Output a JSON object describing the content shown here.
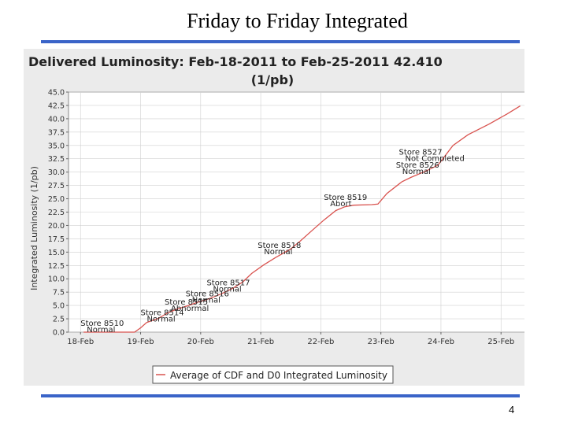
{
  "slide": {
    "title": "Friday to Friday Integrated",
    "page_number": "4"
  },
  "colors": {
    "rule": "#3a64c8",
    "series": "#d9534f",
    "panel": "#ebebeb"
  },
  "chart_data": {
    "type": "line",
    "title_line1": "Delivered Luminosity:  Feb-18-2011 to Feb-25-2011 42.410",
    "title_line2": "(1/pb)",
    "ylabel": "Integrated Luminosity (1/pb)",
    "xlabel": "",
    "ylim": [
      0,
      45
    ],
    "xlim": [
      -0.2,
      7.6
    ],
    "yticks": [
      "0.0",
      "2.5",
      "5.0",
      "7.5",
      "10.0",
      "12.5",
      "15.0",
      "17.5",
      "20.0",
      "22.5",
      "25.0",
      "27.5",
      "30.0",
      "32.5",
      "35.0",
      "37.5",
      "40.0",
      "42.5",
      "45.0"
    ],
    "xticks": [
      "18-Feb",
      "19-Feb",
      "20-Feb",
      "21-Feb",
      "22-Feb",
      "23-Feb",
      "24-Feb",
      "25-Feb"
    ],
    "grid": true,
    "legend": "Average of CDF and D0 Integrated Luminosity",
    "series": [
      {
        "name": "Average of CDF and D0 Integrated Luminosity",
        "x": [
          0.05,
          0.55,
          0.9,
          1.0,
          1.1,
          1.3,
          1.45,
          1.6,
          1.8,
          1.95,
          2.15,
          2.35,
          2.55,
          2.7,
          2.85,
          3.05,
          3.25,
          3.5,
          3.65,
          3.85,
          4.05,
          4.25,
          4.4,
          4.55,
          4.85,
          4.95,
          5.1,
          5.35,
          5.5,
          5.75,
          5.95,
          6.2,
          6.45,
          6.8,
          7.1,
          7.32
        ],
        "y": [
          0,
          0,
          0,
          0.8,
          1.8,
          2.6,
          3.6,
          4.3,
          5.0,
          5.6,
          6.3,
          7.2,
          8.3,
          9.4,
          11.0,
          12.6,
          14.0,
          15.6,
          17.0,
          19.0,
          21.0,
          22.8,
          23.5,
          23.8,
          23.9,
          24.0,
          26.0,
          28.2,
          29.0,
          30.2,
          31.3,
          35.0,
          37.0,
          39.0,
          40.9,
          42.41
        ]
      }
    ],
    "annotations": [
      {
        "x": 0.0,
        "y": 1.2,
        "label": "Store 8510",
        "status": "Normal"
      },
      {
        "x": 1.0,
        "y": 3.2,
        "label": "Store 8514",
        "status": "Normal"
      },
      {
        "x": 1.4,
        "y": 5.2,
        "label": "Store 8515",
        "status": "Abnormal"
      },
      {
        "x": 1.75,
        "y": 6.7,
        "label": "Store 8516",
        "status": "Normal"
      },
      {
        "x": 2.1,
        "y": 8.8,
        "label": "Store 8517",
        "status": "Normal"
      },
      {
        "x": 2.95,
        "y": 15.8,
        "label": "Store 8518",
        "status": "Normal"
      },
      {
        "x": 4.05,
        "y": 24.8,
        "label": "Store 8519",
        "status": "Abort"
      },
      {
        "x": 5.25,
        "y": 30.8,
        "label": "Store 8526",
        "status": "Normal"
      },
      {
        "x": 5.3,
        "y": 33.3,
        "label": "Store 8527",
        "status": "Not Completed"
      }
    ]
  }
}
